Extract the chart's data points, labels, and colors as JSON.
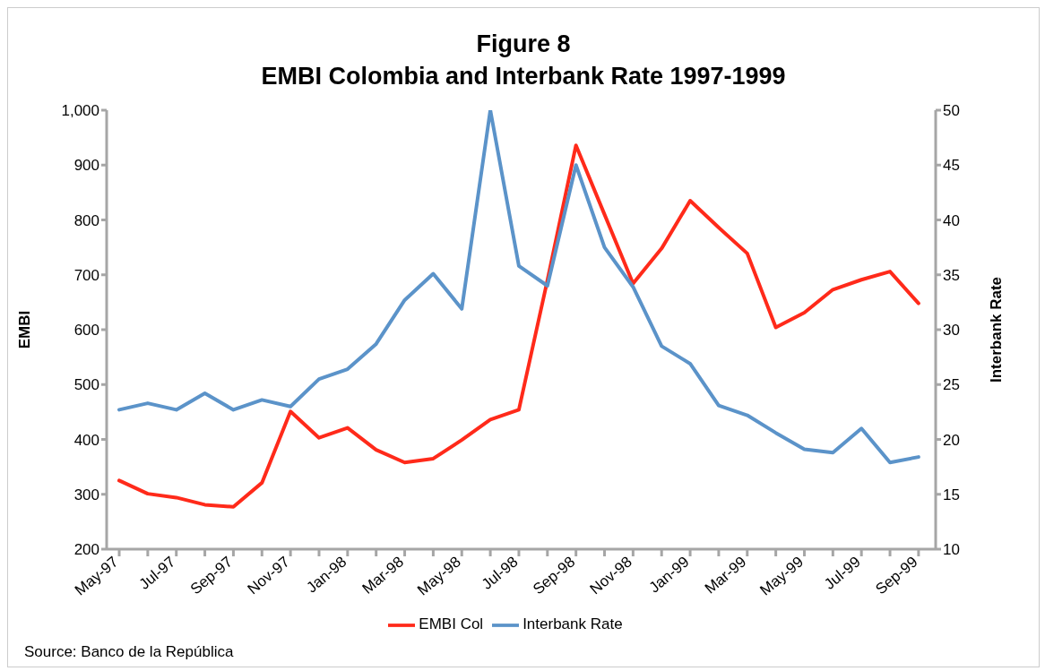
{
  "chart_data": {
    "type": "line",
    "title": "Figure 8",
    "subtitle": "EMBI Colombia and Interbank Rate 1997-1999",
    "ylabel": "EMBI",
    "y2label": "Interbank Rate",
    "categories": [
      "May-97",
      null,
      "Jul-97",
      null,
      "Sep-97",
      null,
      "Nov-97",
      null,
      "Jan-98",
      null,
      "Mar-98",
      null,
      "May-98",
      null,
      "Jul-98",
      null,
      "Sep-98",
      null,
      "Nov-98",
      null,
      "Jan-99",
      null,
      "Mar-99",
      null,
      "May-99",
      null,
      "Jul-99",
      null,
      "Sep-99"
    ],
    "series": [
      {
        "name": "EMBI Col",
        "color": "#ff2a1a",
        "values": [
          325,
          301,
          294,
          281,
          277,
          321,
          451,
          403,
          421,
          381,
          358,
          365,
          399,
          436,
          454,
          690,
          936,
          810,
          684,
          748,
          835,
          786,
          739,
          604,
          631,
          673,
          691,
          706,
          648
        ]
      },
      {
        "name": "Interbank Rate",
        "color": "#5b93c9",
        "axis": "y2",
        "values": [
          22.7,
          23.3,
          22.7,
          24.2,
          22.7,
          23.6,
          23,
          25.5,
          26.4,
          28.7,
          32.7,
          35.1,
          31.9,
          50,
          35.8,
          34,
          45,
          37.5,
          33.9,
          28.5,
          26.9,
          23.1,
          22.2,
          20.6,
          19.1,
          18.8,
          21,
          17.9,
          18.4
        ]
      }
    ],
    "ylim": [
      200,
      1000
    ],
    "yticks": [
      200,
      300,
      400,
      500,
      600,
      700,
      800,
      900,
      {
        "value": 1000,
        "label": "1,000"
      }
    ],
    "y2lim": [
      10,
      50
    ],
    "y2ticks": [
      10,
      15,
      20,
      25,
      30,
      35,
      40,
      45,
      50
    ],
    "grid": false,
    "legend": "bottom",
    "marker": "none",
    "line_style": "solid",
    "annotations": [
      "Source: Banco de la República"
    ]
  }
}
